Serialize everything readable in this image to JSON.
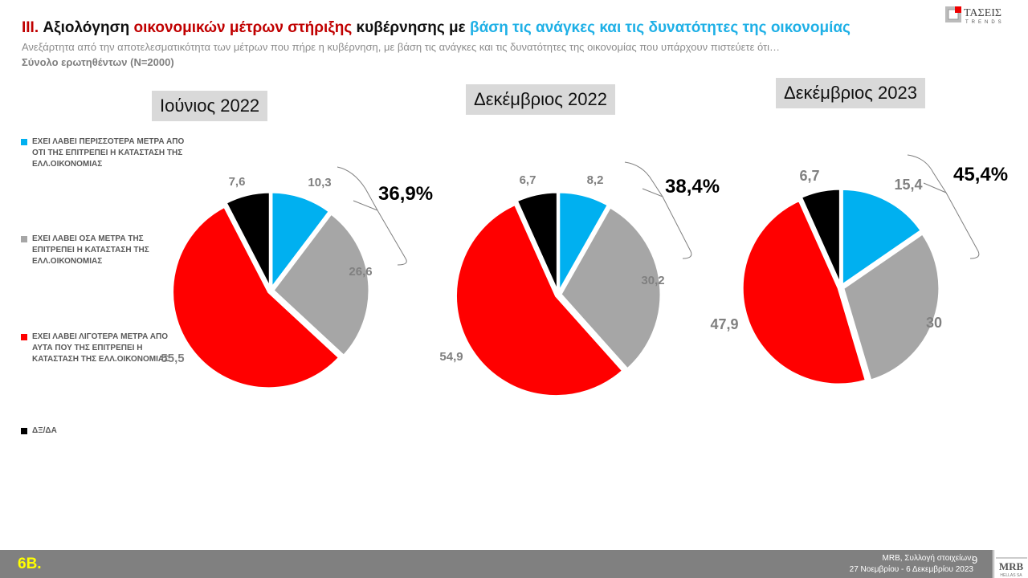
{
  "header": {
    "title_parts": [
      "III.",
      "Αξιολόγηση ",
      "οικονομικών μέτρων στήριξης",
      " κυβέρνησης με ",
      "βάση τις ανάγκες και τις δυνατότητες της  οικονομίας"
    ],
    "subtitle": "Ανεξάρτητα από την αποτελεσματικότητα των μέτρων που πήρε η κυβέρνηση, με βάση τις ανάγκες και τις δυνατότητες της  οικονομίας που υπάρχουν  πιστεύετε ότι…",
    "base": "Σύνολο ερωτηθέντων (N=2000)",
    "logo_text": "ΤΑΣΕΙΣ TRENDS"
  },
  "colors": {
    "more": "#00b0f0",
    "same": "#a6a6a6",
    "less": "#ff0000",
    "dk": "#000000",
    "title_red": "#c00000",
    "title_blue": "#1fb0e6"
  },
  "chart_data": {
    "type": "pie",
    "legend": [
      "ΕΧΕΙ ΛΑΒΕΙ ΠΕΡΙΣΣΟΤΕΡΑ ΜΕΤΡΑ ΑΠΟ ΟΤΙ ΤΗΣ ΕΠΙΤΡΕΠΕΙ Η ΚΑΤΑΣΤΑΣΗ ΤΗΣ ΕΛΛ.ΟΙΚΟΝΟΜΙΑΣ",
      "ΕΧΕΙ ΛΑΒΕΙ ΟΣΑ ΜΕΤΡΑ ΤΗΣ ΕΠΙΤΡΕΠΕΙ Η ΚΑΤΑΣΤΑΣΗ ΤΗΣ ΕΛΛ.ΟΙΚΟΝΟΜΙΑΣ",
      "ΕΧΕΙ ΛΑΒΕΙ ΛΙΓΟΤΕΡΑ ΜΕΤΡΑ ΑΠΟ ΑΥΤΑ ΠΟΥ ΤΗΣ ΕΠΙΤΡΕΠΕΙ Η ΚΑΤΑΣΤΑΣΗ ΤΗΣ ΕΛΛ.ΟΙΚΟΝΟΜΙΑΣ",
      "ΔΞ/ΔΑ"
    ],
    "legend_placement": "left",
    "pies": [
      {
        "title": "Ιούνιος 2022",
        "values": [
          10.3,
          26.6,
          55.5,
          7.6
        ],
        "labels": [
          "10,3",
          "26,6",
          "55,5",
          "7,6"
        ],
        "bracket_total": "36,9%"
      },
      {
        "title": "Δεκέμβριος 2022",
        "values": [
          8.2,
          30.2,
          54.9,
          6.7
        ],
        "labels": [
          "8,2",
          "30,2",
          "54,9",
          "6,7"
        ],
        "bracket_total": "38,4%"
      },
      {
        "title": "Δεκέμβριος 2023",
        "values": [
          15.4,
          30,
          47.9,
          6.7
        ],
        "labels": [
          "15,4",
          "30",
          "47,9",
          "6,7"
        ],
        "bracket_total": "45,4%"
      }
    ]
  },
  "footer": {
    "code": "6B.",
    "source_line1": "MRB, Συλλογή στοιχείων:",
    "source_line2": "27 Νοεμβρίου - 6 Δεκεμβρίου 2023",
    "page": "9",
    "logo_text": "MRB HELLAS SA"
  }
}
